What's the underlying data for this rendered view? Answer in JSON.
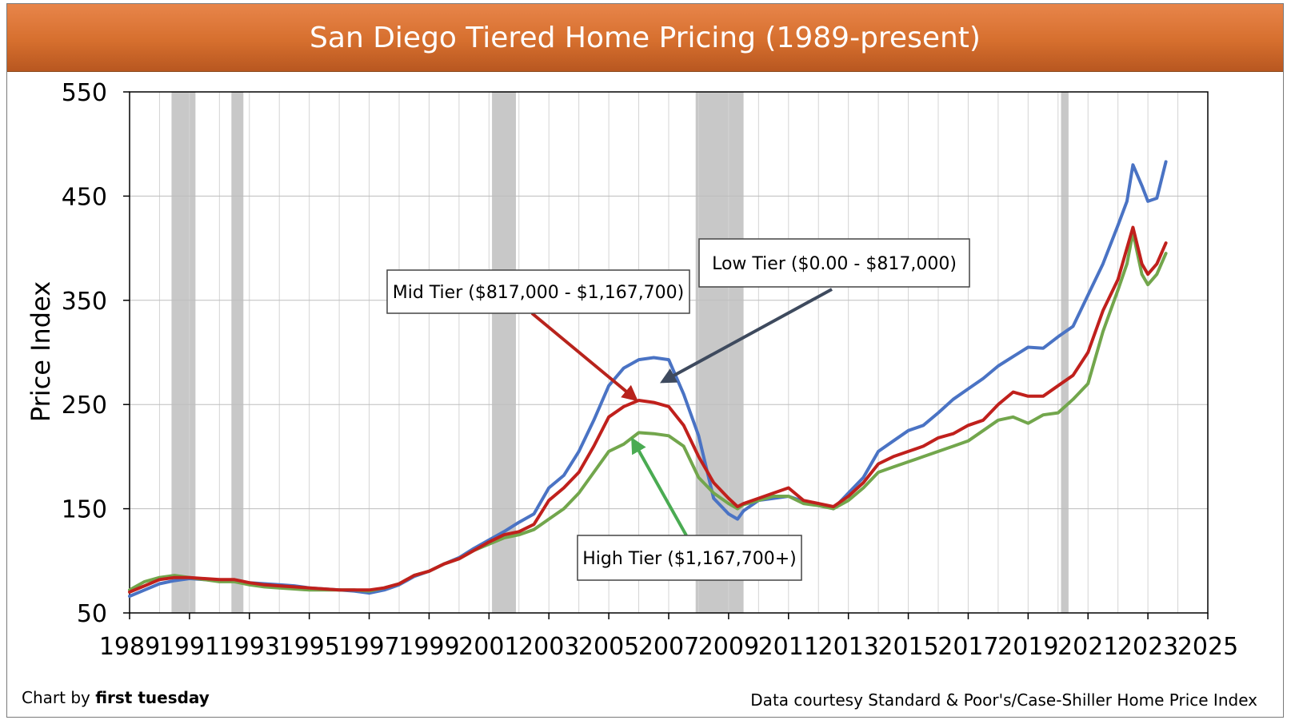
{
  "header": {
    "title": "San Diego Tiered Home Pricing (1989-present)"
  },
  "footer": {
    "credit_prefix": "Chart by ",
    "credit_name": "first tuesday",
    "source": "Data courtesy Standard & Poor's/Case-Shiller Home Price Index"
  },
  "chart_data": {
    "type": "line",
    "title": "San Diego Tiered Home Pricing (1989-present)",
    "xlabel": "",
    "ylabel": "Price Index",
    "xlim": [
      1989,
      2025
    ],
    "ylim": [
      50,
      550
    ],
    "x_ticks": [
      "1989",
      "1991",
      "1993",
      "1995",
      "1997",
      "1999",
      "2001",
      "2003",
      "2005",
      "2007",
      "2009",
      "2011",
      "2013",
      "2015",
      "2017",
      "2019",
      "2021",
      "2023",
      "2025"
    ],
    "y_ticks": [
      50,
      150,
      250,
      350,
      450,
      550
    ],
    "grid": true,
    "recessions": [
      [
        1990.4,
        1991.2
      ],
      [
        1992.4,
        1992.8
      ],
      [
        2001.1,
        2001.9
      ],
      [
        2007.9,
        2009.5
      ],
      [
        2020.1,
        2020.35
      ]
    ],
    "series": [
      {
        "name": "Low Tier ($0.00 - $817,000)",
        "color": "#4a73c4",
        "x": [
          1989.0,
          1989.5,
          1990.0,
          1990.5,
          1991.0,
          1991.5,
          1992.0,
          1992.5,
          1993.0,
          1993.5,
          1994.0,
          1994.5,
          1995.0,
          1995.5,
          1996.0,
          1996.5,
          1997.0,
          1997.5,
          1998.0,
          1998.5,
          1999.0,
          1999.5,
          2000.0,
          2000.5,
          2001.0,
          2001.5,
          2002.0,
          2002.5,
          2003.0,
          2003.5,
          2004.0,
          2004.5,
          2005.0,
          2005.5,
          2006.0,
          2006.5,
          2007.0,
          2007.5,
          2008.0,
          2008.5,
          2009.0,
          2009.3,
          2009.5,
          2010.0,
          2010.5,
          2011.0,
          2011.5,
          2012.0,
          2012.5,
          2013.0,
          2013.5,
          2014.0,
          2014.5,
          2015.0,
          2015.5,
          2016.0,
          2016.5,
          2017.0,
          2017.5,
          2018.0,
          2018.5,
          2019.0,
          2019.5,
          2020.0,
          2020.5,
          2021.0,
          2021.5,
          2022.0,
          2022.3,
          2022.5,
          2022.8,
          2023.0,
          2023.3,
          2023.6
        ],
        "values": [
          66,
          72,
          78,
          81,
          83,
          82,
          81,
          81,
          79,
          78,
          77,
          76,
          74,
          73,
          72,
          71,
          69,
          72,
          77,
          85,
          90,
          97,
          103,
          112,
          120,
          128,
          137,
          145,
          170,
          182,
          205,
          235,
          268,
          285,
          293,
          295,
          293,
          260,
          220,
          160,
          145,
          140,
          148,
          158,
          160,
          162,
          157,
          155,
          150,
          165,
          180,
          205,
          215,
          225,
          230,
          242,
          255,
          265,
          275,
          287,
          296,
          305,
          304,
          315,
          325,
          355,
          385,
          422,
          445,
          480,
          460,
          445,
          448,
          483
        ]
      },
      {
        "name": "Mid Tier ($817,000 - $1,167,700)",
        "color": "#c0201c",
        "x": [
          1989.0,
          1989.5,
          1990.0,
          1990.5,
          1991.0,
          1991.5,
          1992.0,
          1992.5,
          1993.0,
          1993.5,
          1994.0,
          1994.5,
          1995.0,
          1995.5,
          1996.0,
          1996.5,
          1997.0,
          1997.5,
          1998.0,
          1998.5,
          1999.0,
          1999.5,
          2000.0,
          2000.5,
          2001.0,
          2001.5,
          2002.0,
          2002.5,
          2003.0,
          2003.5,
          2004.0,
          2004.5,
          2005.0,
          2005.5,
          2006.0,
          2006.5,
          2007.0,
          2007.5,
          2008.0,
          2008.5,
          2009.0,
          2009.3,
          2009.5,
          2010.0,
          2010.5,
          2011.0,
          2011.5,
          2012.0,
          2012.5,
          2013.0,
          2013.5,
          2014.0,
          2014.5,
          2015.0,
          2015.5,
          2016.0,
          2016.5,
          2017.0,
          2017.5,
          2018.0,
          2018.5,
          2019.0,
          2019.5,
          2020.0,
          2020.5,
          2021.0,
          2021.5,
          2022.0,
          2022.3,
          2022.5,
          2022.8,
          2023.0,
          2023.3,
          2023.6
        ],
        "values": [
          70,
          76,
          82,
          84,
          84,
          83,
          82,
          82,
          79,
          77,
          76,
          75,
          74,
          73,
          72,
          72,
          72,
          74,
          78,
          86,
          90,
          97,
          102,
          110,
          118,
          125,
          128,
          135,
          158,
          170,
          185,
          210,
          238,
          248,
          254,
          252,
          248,
          230,
          200,
          175,
          160,
          152,
          155,
          160,
          165,
          170,
          158,
          155,
          152,
          162,
          175,
          193,
          200,
          205,
          210,
          218,
          222,
          230,
          235,
          250,
          262,
          258,
          258,
          268,
          278,
          300,
          340,
          370,
          400,
          420,
          385,
          375,
          385,
          405
        ]
      },
      {
        "name": "High Tier ($1,167,700+)",
        "color": "#72a64c",
        "x": [
          1989.0,
          1989.5,
          1990.0,
          1990.5,
          1991.0,
          1991.5,
          1992.0,
          1992.5,
          1993.0,
          1993.5,
          1994.0,
          1994.5,
          1995.0,
          1995.5,
          1996.0,
          1996.5,
          1997.0,
          1997.5,
          1998.0,
          1998.5,
          1999.0,
          1999.5,
          2000.0,
          2000.5,
          2001.0,
          2001.5,
          2002.0,
          2002.5,
          2003.0,
          2003.5,
          2004.0,
          2004.5,
          2005.0,
          2005.5,
          2006.0,
          2006.5,
          2007.0,
          2007.5,
          2008.0,
          2008.5,
          2009.0,
          2009.3,
          2009.5,
          2010.0,
          2010.5,
          2011.0,
          2011.5,
          2012.0,
          2012.5,
          2013.0,
          2013.5,
          2014.0,
          2014.5,
          2015.0,
          2015.5,
          2016.0,
          2016.5,
          2017.0,
          2017.5,
          2018.0,
          2018.5,
          2019.0,
          2019.5,
          2020.0,
          2020.5,
          2021.0,
          2021.5,
          2022.0,
          2022.3,
          2022.5,
          2022.8,
          2023.0,
          2023.3,
          2023.6
        ],
        "values": [
          72,
          80,
          84,
          86,
          84,
          82,
          80,
          80,
          77,
          75,
          74,
          73,
          72,
          72,
          72,
          72,
          71,
          74,
          78,
          86,
          90,
          97,
          102,
          110,
          116,
          122,
          125,
          130,
          140,
          150,
          165,
          185,
          205,
          212,
          223,
          222,
          220,
          210,
          180,
          165,
          155,
          150,
          154,
          158,
          162,
          162,
          155,
          153,
          150,
          158,
          170,
          185,
          190,
          195,
          200,
          205,
          210,
          215,
          225,
          235,
          238,
          232,
          240,
          242,
          255,
          270,
          320,
          360,
          385,
          415,
          375,
          365,
          375,
          395
        ]
      }
    ]
  },
  "callouts": [
    {
      "label": "Mid Tier ($817,000 - $1,167,700)",
      "series": 1,
      "target_x": 2005.9,
      "target_y": 255
    },
    {
      "label": "Low Tier ($0.00 - $817,000)",
      "series": 0,
      "target_x": 2006.8,
      "target_y": 272
    },
    {
      "label": "High Tier ($1,167,700+)",
      "series": 2,
      "target_x": 2005.8,
      "target_y": 216
    }
  ]
}
